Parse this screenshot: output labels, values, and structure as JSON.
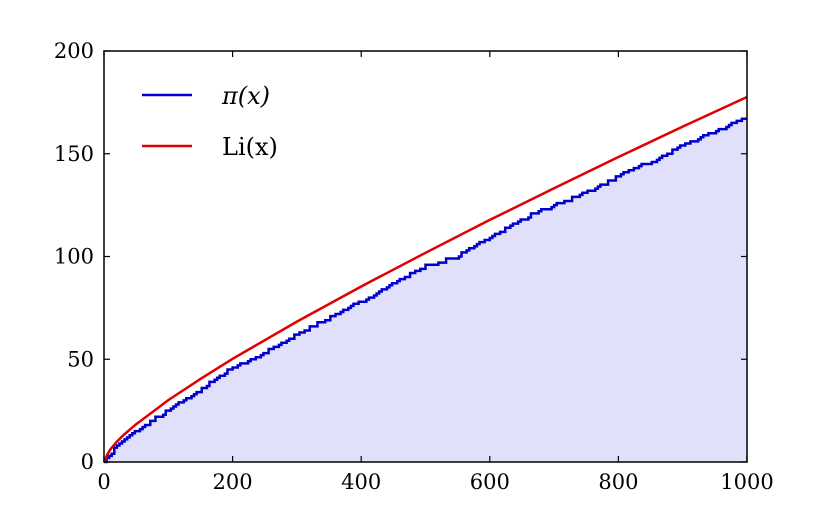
{
  "chart_data": {
    "type": "line",
    "title": "",
    "xlabel": "",
    "ylabel": "",
    "xlim": [
      0,
      1000
    ],
    "ylim": [
      0,
      200
    ],
    "grid": false,
    "legend_position": "top-left",
    "x_ticks": [
      "0",
      "200",
      "400",
      "600",
      "800",
      "1000"
    ],
    "y_ticks": [
      "0",
      "50",
      "100",
      "150",
      "200"
    ],
    "series": [
      {
        "name": "π(x)",
        "color": "#0000cc",
        "fill": "#e0e0fb",
        "style": "step",
        "x": [
          0,
          2,
          10,
          20,
          50,
          100,
          150,
          200,
          250,
          300,
          350,
          400,
          450,
          500,
          550,
          600,
          650,
          700,
          750,
          800,
          850,
          900,
          950,
          1000
        ],
        "values": [
          0,
          1,
          4,
          8,
          15,
          25,
          35,
          46,
          53,
          62,
          70,
          78,
          87,
          95,
          100,
          109,
          118,
          125,
          131,
          139,
          146,
          154,
          161,
          168
        ]
      },
      {
        "name": "Li(x)",
        "color": "#e00000",
        "style": "smooth",
        "x": [
          2,
          5,
          10,
          20,
          30,
          50,
          75,
          100,
          150,
          200,
          300,
          400,
          500,
          600,
          700,
          800,
          900,
          1000
        ],
        "values": [
          1.05,
          3.63,
          6.17,
          9.91,
          13.02,
          18.4,
          24.2,
          30.1,
          40.4,
          50.2,
          68.3,
          85.4,
          101.8,
          117.8,
          133.2,
          148.4,
          163.2,
          177.6
        ]
      }
    ]
  }
}
